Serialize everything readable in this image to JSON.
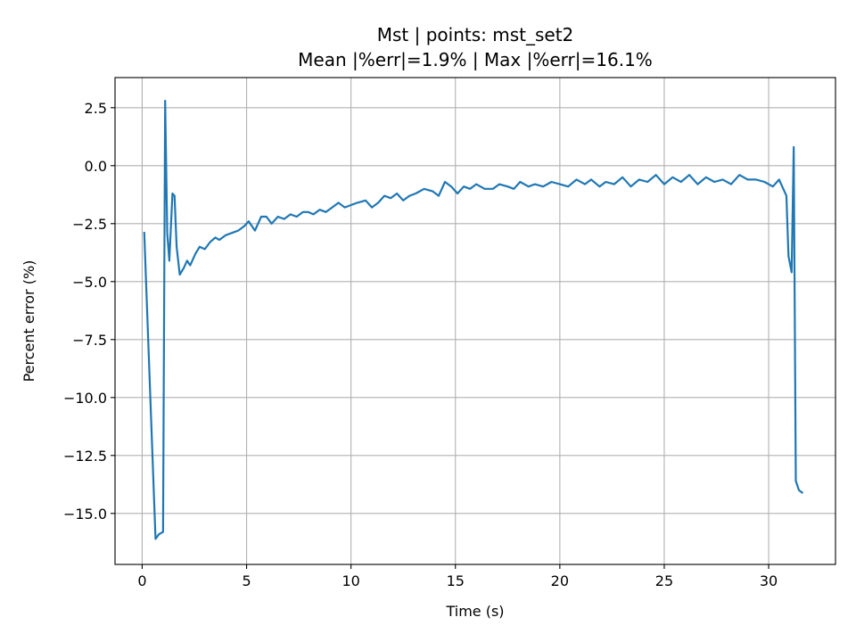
{
  "chart_data": {
    "type": "line",
    "title": "Mst | points: mst_set2",
    "subtitle": "Mean |%err|=1.9% | Max |%err|=16.1%",
    "xlabel": "Time (s)",
    "ylabel": "Percent error (%)",
    "xlim": [
      -1.3,
      33.2
    ],
    "ylim": [
      -17.2,
      3.8
    ],
    "xticks": [
      0,
      5,
      10,
      15,
      20,
      25,
      30
    ],
    "xtick_labels": [
      "0",
      "5",
      "10",
      "15",
      "20",
      "25",
      "30"
    ],
    "yticks": [
      2.5,
      0,
      -2.5,
      -5,
      -7.5,
      -10,
      -12.5,
      -15
    ],
    "ytick_labels": [
      "2.5",
      "0.0",
      "−2.5",
      "−5.0",
      "−7.5",
      "−10.0",
      "−12.5",
      "−15.0"
    ],
    "grid": true,
    "line_color": "#1f77b4",
    "series": [
      {
        "x": [
          0.1,
          0.64,
          0.8,
          1.0,
          1.1,
          1.2,
          1.3,
          1.45,
          1.55,
          1.65,
          1.8,
          2.0,
          2.15,
          2.3,
          2.55,
          2.75,
          3.0,
          3.25,
          3.5,
          3.7,
          4.0,
          4.3,
          4.6,
          4.9,
          5.1,
          5.4,
          5.7,
          5.95,
          6.2,
          6.5,
          6.8,
          7.1,
          7.4,
          7.7,
          7.95,
          8.2,
          8.5,
          8.8,
          9.1,
          9.4,
          9.7,
          10.0,
          10.3,
          10.7,
          11.0,
          11.3,
          11.6,
          11.9,
          12.2,
          12.5,
          12.8,
          13.1,
          13.5,
          13.9,
          14.2,
          14.5,
          14.8,
          15.1,
          15.4,
          15.7,
          16.0,
          16.4,
          16.8,
          17.1,
          17.5,
          17.8,
          18.1,
          18.5,
          18.8,
          19.2,
          19.6,
          20.0,
          20.4,
          20.8,
          21.2,
          21.5,
          21.9,
          22.2,
          22.6,
          23.0,
          23.4,
          23.8,
          24.2,
          24.6,
          25.0,
          25.4,
          25.8,
          26.2,
          26.6,
          27.0,
          27.4,
          27.8,
          28.2,
          28.6,
          29.0,
          29.4,
          29.8,
          30.2,
          30.5,
          30.7,
          30.85,
          30.95,
          31.1,
          31.2,
          31.3,
          31.45,
          31.6
        ],
        "y": [
          -2.9,
          -16.1,
          -15.9,
          -15.8,
          2.8,
          -2.9,
          -4.1,
          -1.2,
          -1.3,
          -3.5,
          -4.7,
          -4.4,
          -4.1,
          -4.3,
          -3.8,
          -3.5,
          -3.6,
          -3.3,
          -3.1,
          -3.2,
          -3.0,
          -2.9,
          -2.8,
          -2.6,
          -2.4,
          -2.8,
          -2.2,
          -2.2,
          -2.5,
          -2.2,
          -2.3,
          -2.1,
          -2.2,
          -2.0,
          -2.0,
          -2.1,
          -1.9,
          -2.0,
          -1.8,
          -1.6,
          -1.8,
          -1.7,
          -1.6,
          -1.5,
          -1.8,
          -1.6,
          -1.3,
          -1.4,
          -1.2,
          -1.5,
          -1.3,
          -1.2,
          -1.0,
          -1.1,
          -1.3,
          -0.7,
          -0.9,
          -1.2,
          -0.9,
          -1.0,
          -0.8,
          -1.0,
          -1.0,
          -0.8,
          -0.9,
          -1.0,
          -0.7,
          -0.9,
          -0.8,
          -0.9,
          -0.7,
          -0.8,
          -0.9,
          -0.6,
          -0.8,
          -0.6,
          -0.9,
          -0.7,
          -0.8,
          -0.5,
          -0.9,
          -0.6,
          -0.7,
          -0.4,
          -0.8,
          -0.5,
          -0.7,
          -0.4,
          -0.8,
          -0.5,
          -0.7,
          -0.6,
          -0.8,
          -0.4,
          -0.6,
          -0.6,
          -0.7,
          -0.9,
          -0.6,
          -1.0,
          -1.3,
          -3.9,
          -4.6,
          0.8,
          -13.6,
          -14.0,
          -14.1
        ]
      }
    ]
  }
}
